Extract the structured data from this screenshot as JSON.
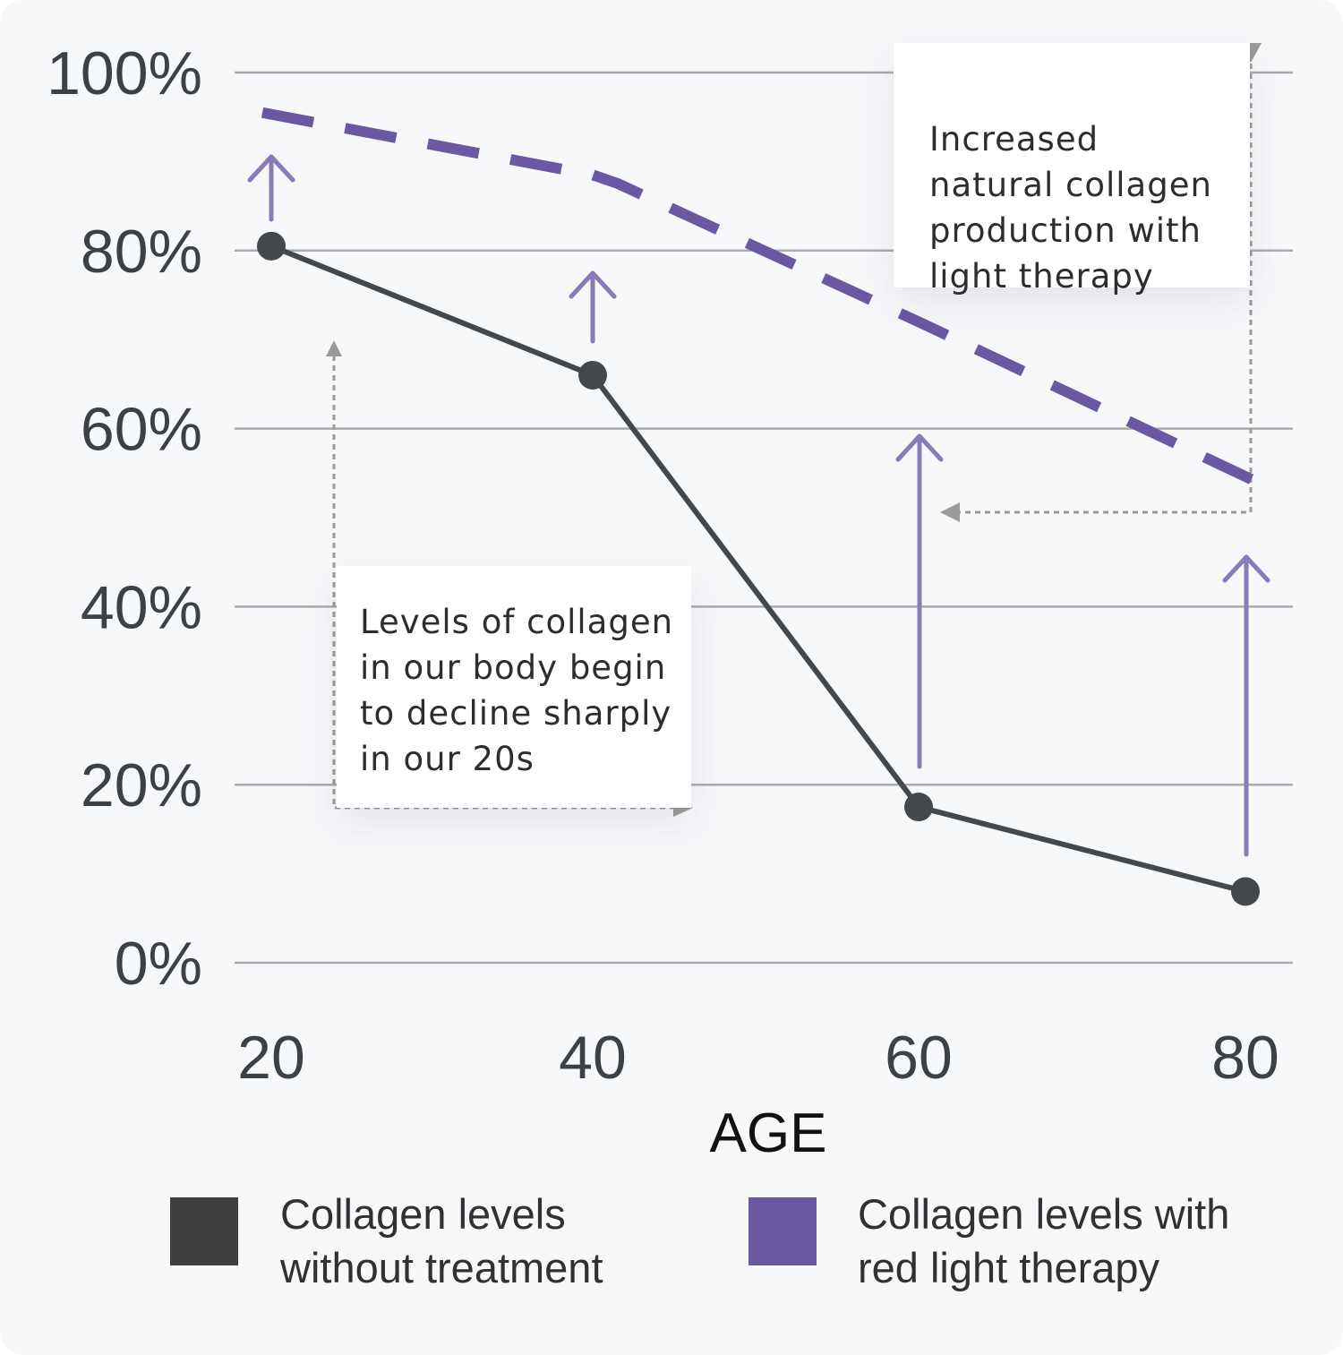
{
  "chart_data": {
    "type": "line",
    "x": [
      20,
      40,
      60,
      80
    ],
    "x_ticks": [
      "20",
      "40",
      "60",
      "80"
    ],
    "y_ticks": [
      "0%",
      "20%",
      "40%",
      "60%",
      "80%",
      "100%"
    ],
    "xlabel": "AGE",
    "ylabel": "",
    "ylim": [
      0,
      100
    ],
    "grid": true,
    "legend_position": "bottom",
    "series": [
      {
        "name": "Collagen levels without treatment",
        "values": [
          80.5,
          66,
          17.5,
          8
        ],
        "style": "solid",
        "color": "#45484b",
        "markers": true
      },
      {
        "name": "Collagen levels with red light therapy",
        "values": [
          95.5,
          88.5,
          72,
          54
        ],
        "style": "dashed",
        "color": "#6a58a3",
        "markers": false
      }
    ],
    "annotations": [
      {
        "id": "decline",
        "lines": [
          "Levels of collagen",
          "in our body begin",
          "to decline sharply",
          "in our 20s"
        ]
      },
      {
        "id": "increase",
        "lines": [
          "Increased",
          "natural collagen",
          "production with",
          "light therapy"
        ]
      }
    ]
  },
  "colors": {
    "background": "#f7f8fa",
    "grid": "#a9abae",
    "no_treatment": "#45484b",
    "therapy": "#6a58a3",
    "arrow": "#8a7bb8",
    "pointer": "#9a9a9a",
    "legend_no_treatment": "#403d3d",
    "legend_therapy": "#6a58a3"
  },
  "legend": [
    {
      "lines": [
        "Collagen levels",
        "without treatment"
      ]
    },
    {
      "lines": [
        "Collagen levels with",
        "red light therapy"
      ]
    }
  ]
}
